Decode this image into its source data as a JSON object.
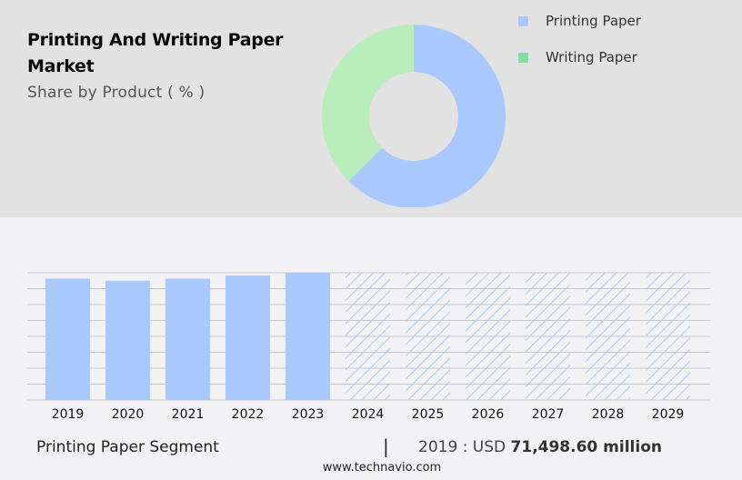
{
  "header": {
    "title": "Printing And Writing Paper Market",
    "subtitle": "Share by Product ( % )"
  },
  "legend": [
    {
      "label": "Printing Paper",
      "color": "#a9c9fc"
    },
    {
      "label": "Writing Paper",
      "color": "#7ee39b"
    }
  ],
  "footer": {
    "segment_label": "Printing Paper Segment",
    "separator": "|",
    "value_prefix": "2019 : USD",
    "value": "71,498.60 million",
    "url": "www.technavio.com"
  },
  "chart_data": [
    {
      "type": "pie",
      "variant": "donut",
      "title": "Printing And Writing Paper Market",
      "subtitle": "Share by Product ( % )",
      "categories": [
        "Printing Paper",
        "Writing Paper"
      ],
      "values": [
        62.5,
        37.5
      ],
      "colors": [
        "#a9c9fc",
        "#b8edbb"
      ],
      "legend_position": "right"
    },
    {
      "type": "bar",
      "title": "Printing Paper Segment",
      "categories": [
        "2019",
        "2020",
        "2021",
        "2022",
        "2023",
        "2024",
        "2025",
        "2026",
        "2027",
        "2028",
        "2029"
      ],
      "values": [
        71498.6,
        70300,
        71500,
        73300,
        75000,
        null,
        null,
        null,
        null,
        null,
        null
      ],
      "forecast_years": [
        "2024",
        "2025",
        "2026",
        "2027",
        "2028",
        "2029"
      ],
      "unit": "USD million",
      "xlabel": "",
      "ylabel": "",
      "grid": true,
      "annotation": "2019 : USD 71,498.60 million",
      "bar_color": "#a9c9fc"
    }
  ]
}
